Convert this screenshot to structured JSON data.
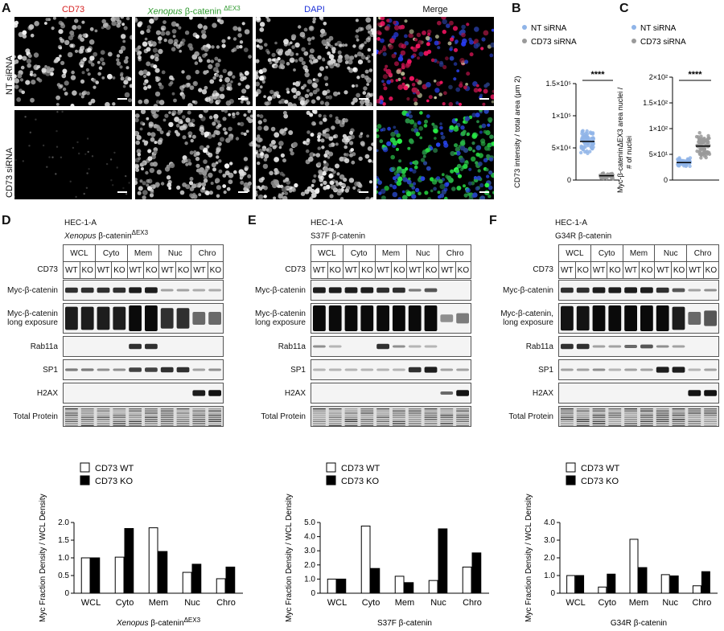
{
  "panel_labels": {
    "a": "A",
    "b": "B",
    "c": "C",
    "d": "D",
    "e": "E",
    "f": "F"
  },
  "panel_a": {
    "columns": [
      {
        "pre": "CD73",
        "italic": "",
        "post": "",
        "sup": "",
        "color": "#d62020"
      },
      {
        "pre": "",
        "italic": "Xenopus",
        "post": " β-catenin ",
        "sup": "ΔEX3",
        "color": "#2e9a2e"
      },
      {
        "pre": "DAPI",
        "italic": "",
        "post": "",
        "sup": "",
        "color": "#1a2fd8"
      },
      {
        "pre": "Merge",
        "italic": "",
        "post": "",
        "sup": "",
        "color": "#111111"
      }
    ],
    "rows": [
      "NT siRNA",
      "CD73 siRNA"
    ]
  },
  "scatter_b": {
    "legend": [
      {
        "name": "NT siRNA",
        "color": "#8fb4e8"
      },
      {
        "name": "CD73 siRNA",
        "color": "#9a9a9a"
      }
    ],
    "ylabel": "CD73 intensity / total area (μm 2)",
    "yticks": [
      "0",
      "5×10⁴",
      "1×10⁵",
      "1.5×10⁵"
    ],
    "significance": "****"
  },
  "scatter_c": {
    "legend": [
      {
        "name": "NT siRNA",
        "color": "#8fb4e8"
      },
      {
        "name": "CD73 siRNA",
        "color": "#9a9a9a"
      }
    ],
    "ylabel_1": "Myc-β-cateninΔEX3 area nuclei /",
    "ylabel_2": "# of nuclei",
    "yticks": [
      "0",
      "5×10¹",
      "1×10²",
      "1.5×10²",
      "2×10²"
    ],
    "significance": "****"
  },
  "blots": [
    {
      "cell_line": "HEC-1-A",
      "construct_italic": "Xenopus",
      "construct_text": " β-catenin",
      "construct_sup": "ΔEX3",
      "fractions": [
        "WCL",
        "Cyto",
        "Mem",
        "Nuc",
        "Chro"
      ],
      "genotypes": [
        "WT",
        "KO"
      ],
      "cd73_label": "CD73",
      "rows": [
        "Myc-β-catenin",
        "Myc-β-catenin long exposure",
        "Rab11a",
        "SP1",
        "H2AX",
        "Total Protein"
      ]
    },
    {
      "cell_line": "HEC-1-A",
      "construct_italic": "",
      "construct_text": "S37F  β-catenin",
      "construct_sup": "",
      "fractions": [
        "WCL",
        "Cyto",
        "Mem",
        "Nuc",
        "Chro"
      ],
      "genotypes": [
        "WT",
        "KO"
      ],
      "cd73_label": "CD73",
      "rows": [
        "Myc-β-catenin",
        "Myc-β-catenin long exposure",
        "Rab11a",
        "SP1",
        "H2AX",
        "Total Protein"
      ]
    },
    {
      "cell_line": "HEC-1-A",
      "construct_italic": "",
      "construct_text": "G34R β-catenin",
      "construct_sup": "",
      "fractions": [
        "WCL",
        "Cyto",
        "Mem",
        "Nuc",
        "Chro"
      ],
      "genotypes": [
        "WT",
        "KO"
      ],
      "cd73_label": "CD73",
      "rows": [
        "Myc-β-catenin",
        "Myc-β-catenin, long exposure",
        "Rab11a",
        "SP1",
        "H2AX",
        "Total Protein"
      ]
    }
  ],
  "chart_data": [
    {
      "type": "bar",
      "categories": [
        "WCL",
        "Cyto",
        "Mem",
        "Nuc",
        "Chro"
      ],
      "series": [
        {
          "name": "CD73 WT",
          "values": [
            1.0,
            1.02,
            1.85,
            0.59,
            0.41
          ]
        },
        {
          "name": "CD73 KO",
          "values": [
            1.0,
            1.83,
            1.18,
            0.82,
            0.74
          ]
        }
      ],
      "ylabel": "Myc Fraction Density / WCL Density",
      "xlabel_italic": "Xenopus",
      "xlabel_text": " β-catenin",
      "xlabel_sup": "ΔEX3",
      "ylim": [
        0,
        2.0
      ],
      "yticks": [
        "0",
        "0.5",
        "1.0",
        "1.5",
        "2.0"
      ],
      "legend": "top-left"
    },
    {
      "type": "bar",
      "categories": [
        "WCL",
        "Cyto",
        "Mem",
        "Nuc",
        "Chro"
      ],
      "series": [
        {
          "name": "CD73 WT",
          "values": [
            1.0,
            4.75,
            1.2,
            0.9,
            1.85
          ]
        },
        {
          "name": "CD73 KO",
          "values": [
            1.0,
            1.75,
            0.75,
            4.55,
            2.85
          ]
        }
      ],
      "ylabel": "Myc Fraction Density / WCL Density",
      "xlabel_italic": "",
      "xlabel_text": "S37F β-catenin",
      "xlabel_sup": "",
      "ylim": [
        0,
        5.0
      ],
      "yticks": [
        "0",
        "1.0",
        "2.0",
        "3.0",
        "4.0",
        "5.0"
      ],
      "legend": "top-left"
    },
    {
      "type": "bar",
      "categories": [
        "WCL",
        "Cyto",
        "Mem",
        "Nuc",
        "Chro"
      ],
      "series": [
        {
          "name": "CD73 WT",
          "values": [
            1.0,
            0.35,
            3.05,
            1.05,
            0.42
          ]
        },
        {
          "name": "CD73 KO",
          "values": [
            1.0,
            1.08,
            1.45,
            0.98,
            1.22
          ]
        }
      ],
      "ylabel": "Myc Fraction Density / WCL Density",
      "xlabel_italic": "",
      "xlabel_text": "G34R β-catenin",
      "xlabel_sup": "",
      "ylim": [
        0,
        4.0
      ],
      "yticks": [
        "0",
        "1.0",
        "2.0",
        "3.0",
        "4.0"
      ],
      "legend": "top-left"
    }
  ]
}
